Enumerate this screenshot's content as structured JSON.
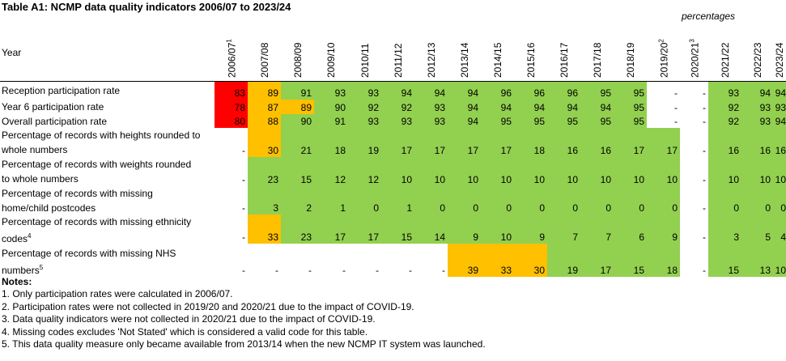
{
  "title": "Table A1: NCMP data quality indicators 2006/07 to 2023/24",
  "units_label": "percentages",
  "year_header": "Year",
  "colors": {
    "red": "#ff0000",
    "amber": "#ffc000",
    "green": "#92d050"
  },
  "years": [
    {
      "label": "2006/07",
      "sup": "1"
    },
    {
      "label": "2007/08",
      "sup": ""
    },
    {
      "label": "2008/09",
      "sup": ""
    },
    {
      "label": "2009/10",
      "sup": ""
    },
    {
      "label": "2010/11",
      "sup": ""
    },
    {
      "label": "2011/12",
      "sup": ""
    },
    {
      "label": "2012/13",
      "sup": ""
    },
    {
      "label": "2013/14",
      "sup": ""
    },
    {
      "label": "2014/15",
      "sup": ""
    },
    {
      "label": "2015/16",
      "sup": ""
    },
    {
      "label": "2016/17",
      "sup": ""
    },
    {
      "label": "2017/18",
      "sup": ""
    },
    {
      "label": "2018/19",
      "sup": ""
    },
    {
      "label": "2019/20",
      "sup": "2"
    },
    {
      "label": "2020/21",
      "sup": "3"
    },
    {
      "label": "2021/22",
      "sup": ""
    },
    {
      "label": "2022/23",
      "sup": ""
    },
    {
      "label": "2023/24",
      "sup": ""
    }
  ],
  "rows": [
    {
      "label": [
        "Reception participation rate"
      ],
      "sup": "",
      "values": [
        "83",
        "89",
        "91",
        "93",
        "93",
        "94",
        "94",
        "94",
        "96",
        "96",
        "96",
        "95",
        "95",
        "-",
        "-",
        "93",
        "94",
        "94"
      ],
      "status": [
        "red",
        "amber",
        "green",
        "green",
        "green",
        "green",
        "green",
        "green",
        "green",
        "green",
        "green",
        "green",
        "green",
        "none",
        "none",
        "green",
        "green",
        "green"
      ]
    },
    {
      "label": [
        "Year 6 participation rate"
      ],
      "sup": "",
      "values": [
        "78",
        "87",
        "89",
        "90",
        "92",
        "92",
        "93",
        "94",
        "94",
        "94",
        "94",
        "94",
        "95",
        "-",
        "-",
        "92",
        "93",
        "93"
      ],
      "status": [
        "red",
        "amber",
        "amber",
        "green",
        "green",
        "green",
        "green",
        "green",
        "green",
        "green",
        "green",
        "green",
        "green",
        "none",
        "none",
        "green",
        "green",
        "green"
      ]
    },
    {
      "label": [
        "Overall participation rate"
      ],
      "sup": "",
      "values": [
        "80",
        "88",
        "90",
        "91",
        "93",
        "93",
        "93",
        "94",
        "95",
        "95",
        "95",
        "95",
        "95",
        "-",
        "-",
        "92",
        "93",
        "94"
      ],
      "status": [
        "red",
        "amber",
        "green",
        "green",
        "green",
        "green",
        "green",
        "green",
        "green",
        "green",
        "green",
        "green",
        "green",
        "none",
        "none",
        "green",
        "green",
        "green"
      ]
    },
    {
      "label": [
        "Percentage of records with heights rounded to",
        "whole numbers"
      ],
      "sup": "",
      "values": [
        "-",
        "30",
        "21",
        "18",
        "19",
        "17",
        "17",
        "17",
        "17",
        "18",
        "16",
        "16",
        "17",
        "17",
        "-",
        "16",
        "16",
        "16"
      ],
      "status": [
        "none",
        "amber",
        "green",
        "green",
        "green",
        "green",
        "green",
        "green",
        "green",
        "green",
        "green",
        "green",
        "green",
        "green",
        "none",
        "green",
        "green",
        "green"
      ]
    },
    {
      "label": [
        "Percentage of records with weights rounded",
        "to whole numbers"
      ],
      "sup": "",
      "values": [
        "-",
        "23",
        "15",
        "12",
        "12",
        "10",
        "10",
        "10",
        "10",
        "10",
        "10",
        "10",
        "10",
        "10",
        "-",
        "10",
        "10",
        "10"
      ],
      "status": [
        "none",
        "green",
        "green",
        "green",
        "green",
        "green",
        "green",
        "green",
        "green",
        "green",
        "green",
        "green",
        "green",
        "green",
        "none",
        "green",
        "green",
        "green"
      ]
    },
    {
      "label": [
        "Percentage of records with missing",
        "home/child postcodes"
      ],
      "sup": "",
      "values": [
        "-",
        "3",
        "2",
        "1",
        "0",
        "1",
        "0",
        "0",
        "0",
        "0",
        "0",
        "0",
        "0",
        "0",
        "-",
        "0",
        "0",
        "0"
      ],
      "status": [
        "none",
        "green",
        "green",
        "green",
        "green",
        "green",
        "green",
        "green",
        "green",
        "green",
        "green",
        "green",
        "green",
        "green",
        "none",
        "green",
        "green",
        "green"
      ]
    },
    {
      "label": [
        "Percentage of records with missing ethnicity",
        "codes"
      ],
      "sup": "4",
      "values": [
        "-",
        "33",
        "23",
        "17",
        "17",
        "15",
        "14",
        "9",
        "10",
        "9",
        "7",
        "7",
        "6",
        "9",
        "-",
        "3",
        "5",
        "4"
      ],
      "status": [
        "none",
        "amber",
        "green",
        "green",
        "green",
        "green",
        "green",
        "green",
        "green",
        "green",
        "green",
        "green",
        "green",
        "green",
        "none",
        "green",
        "green",
        "green"
      ]
    },
    {
      "label": [
        "Percentage of records with missing NHS",
        "numbers"
      ],
      "sup": "5",
      "values": [
        "-",
        "-",
        "-",
        "-",
        "-",
        "-",
        "-",
        "39",
        "33",
        "30",
        "19",
        "17",
        "15",
        "18",
        "-",
        "15",
        "13",
        "10"
      ],
      "status": [
        "none",
        "none",
        "none",
        "none",
        "none",
        "none",
        "none",
        "amber",
        "amber",
        "amber",
        "green",
        "green",
        "green",
        "green",
        "none",
        "green",
        "green",
        "green"
      ]
    }
  ],
  "notes": {
    "title": "Notes:",
    "items": [
      "1. Only participation rates were calculated in 2006/07.",
      "2. Participation rates were not collected in 2019/20 and 2020/21 due to the impact of COVID-19.",
      "3. Data quality indicators were not collected in 2020/21 due to the impact of COVID-19.",
      "4. Missing codes excludes 'Not Stated' which is considered a valid code for this table.",
      "5. This data quality measure only became available from 2013/14 when the new NCMP IT system was launched."
    ]
  }
}
